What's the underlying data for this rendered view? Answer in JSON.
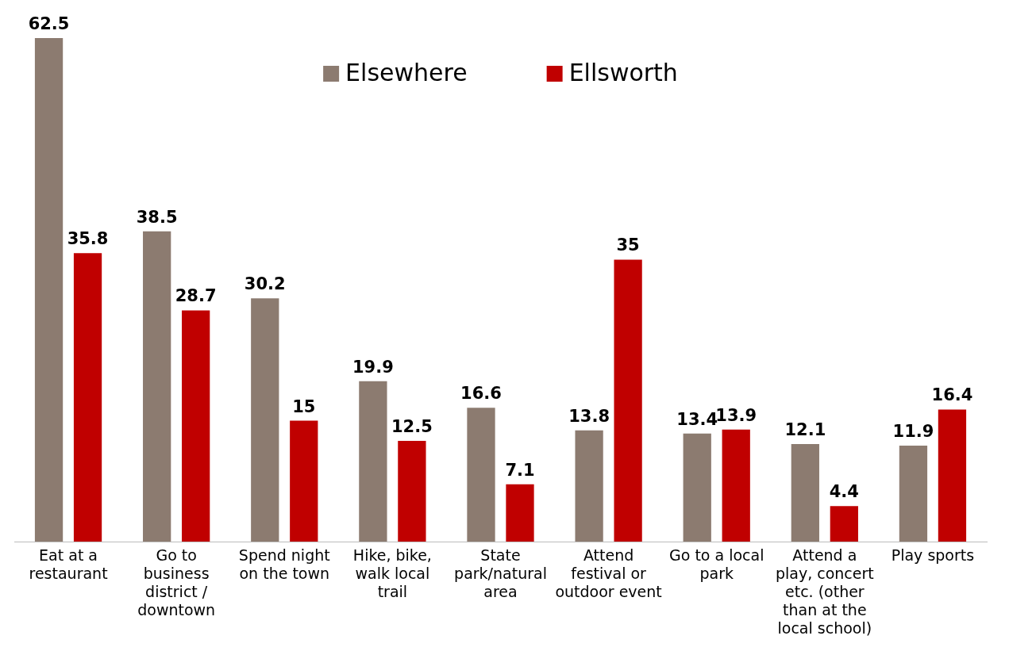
{
  "chart_data": {
    "type": "bar",
    "categories": [
      "Eat at a restaurant",
      "Go to business district / downtown",
      "Spend night on the town",
      "Hike, bike, walk local trail",
      "State park/natural area",
      "Attend festival or outdoor event",
      "Go to a local park",
      "Attend a play, concert etc. (other than at the local school)",
      "Play sports"
    ],
    "series": [
      {
        "name": "Elsewhere",
        "color": "#8c7b70",
        "values": [
          62.5,
          38.5,
          30.2,
          19.9,
          16.6,
          13.8,
          13.4,
          12.1,
          11.9
        ]
      },
      {
        "name": "Ellsworth",
        "color": "#c00000",
        "values": [
          35.8,
          28.7,
          15,
          12.5,
          7.1,
          35,
          13.9,
          4.4,
          16.4
        ]
      }
    ],
    "data_labels": true,
    "legend": "top",
    "grid": false
  }
}
